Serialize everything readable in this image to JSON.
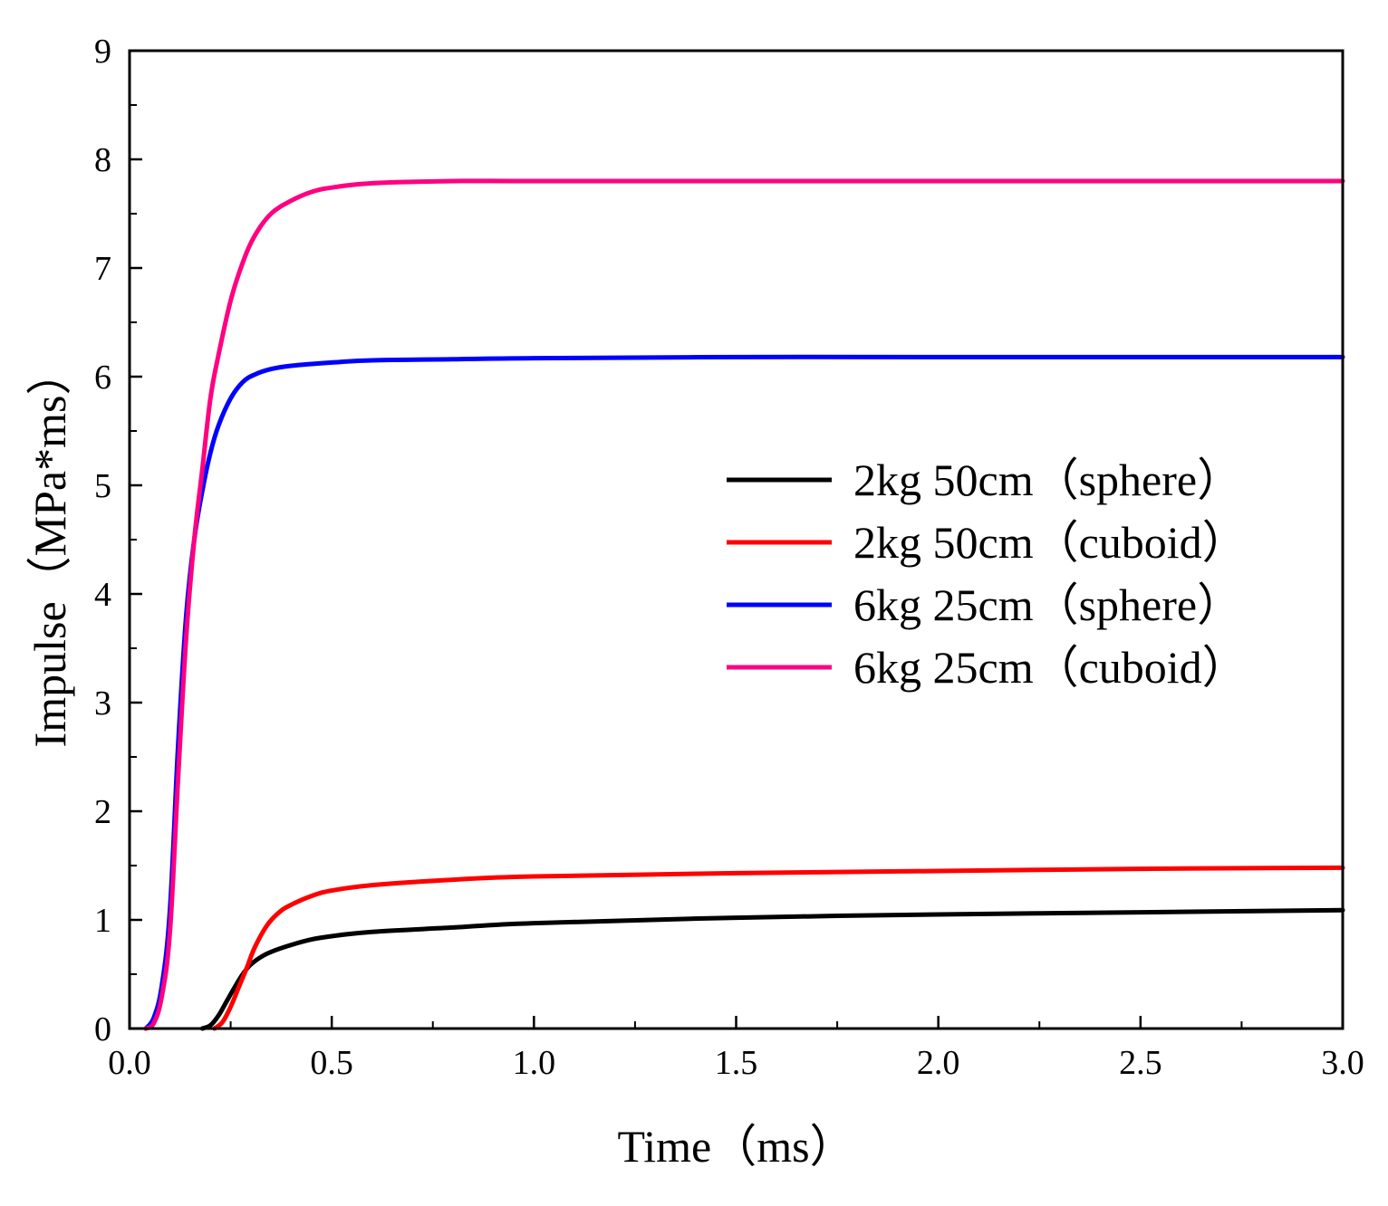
{
  "chart_data": {
    "type": "line",
    "title": "",
    "xlabel": "Time（ms）",
    "ylabel": "Impulse（MPa*ms）",
    "xlim": [
      0,
      3.0
    ],
    "ylim": [
      0,
      9
    ],
    "xticks": [
      "0.0",
      "0.5",
      "1.0",
      "1.5",
      "2.0",
      "2.5",
      "3.0"
    ],
    "xtick_values": [
      0,
      0.5,
      1.0,
      1.5,
      2.0,
      2.5,
      3.0
    ],
    "yticks": [
      "0",
      "1",
      "2",
      "3",
      "4",
      "5",
      "6",
      "7",
      "8",
      "9"
    ],
    "ytick_values": [
      0,
      1,
      2,
      3,
      4,
      5,
      6,
      7,
      8,
      9
    ],
    "grid": false,
    "legend_position": "center-right",
    "series": [
      {
        "name": "2kg 50cm（sphere）",
        "color": "#000000",
        "x": [
          0.18,
          0.2,
          0.22,
          0.24,
          0.26,
          0.28,
          0.3,
          0.33,
          0.36,
          0.4,
          0.45,
          0.5,
          0.6,
          0.8,
          1.0,
          1.5,
          2.0,
          2.5,
          3.0
        ],
        "y": [
          0,
          0.03,
          0.12,
          0.25,
          0.38,
          0.5,
          0.59,
          0.67,
          0.72,
          0.77,
          0.82,
          0.85,
          0.89,
          0.93,
          0.97,
          1.02,
          1.05,
          1.07,
          1.09
        ]
      },
      {
        "name": "2kg 50cm（cuboid）",
        "color": "#ff0000",
        "x": [
          0.21,
          0.23,
          0.25,
          0.27,
          0.29,
          0.31,
          0.34,
          0.37,
          0.4,
          0.45,
          0.5,
          0.6,
          0.8,
          1.0,
          1.5,
          2.0,
          2.5,
          3.0
        ],
        "y": [
          0,
          0.06,
          0.2,
          0.38,
          0.56,
          0.75,
          0.95,
          1.07,
          1.14,
          1.22,
          1.27,
          1.32,
          1.37,
          1.4,
          1.43,
          1.45,
          1.47,
          1.48
        ]
      },
      {
        "name": "6kg 25cm（sphere）",
        "color": "#0000ff",
        "x": [
          0.04,
          0.06,
          0.08,
          0.1,
          0.12,
          0.14,
          0.16,
          0.18,
          0.2,
          0.22,
          0.25,
          0.28,
          0.31,
          0.35,
          0.4,
          0.5,
          0.6,
          0.8,
          1.0,
          1.5,
          2.0,
          3.0
        ],
        "y": [
          0,
          0.1,
          0.4,
          1.1,
          2.6,
          3.8,
          4.5,
          4.95,
          5.3,
          5.55,
          5.8,
          5.95,
          6.02,
          6.07,
          6.1,
          6.13,
          6.15,
          6.16,
          6.17,
          6.18,
          6.18,
          6.18
        ]
      },
      {
        "name": "6kg 25cm（cuboid）",
        "color": "#ff0080",
        "x": [
          0.04,
          0.06,
          0.08,
          0.1,
          0.12,
          0.14,
          0.16,
          0.18,
          0.2,
          0.22,
          0.25,
          0.28,
          0.31,
          0.35,
          0.4,
          0.45,
          0.5,
          0.6,
          0.8,
          1.0,
          1.5,
          2.0,
          3.0
        ],
        "y": [
          0,
          0.05,
          0.3,
          0.9,
          2.3,
          3.6,
          4.5,
          5.15,
          5.8,
          6.2,
          6.7,
          7.05,
          7.3,
          7.5,
          7.62,
          7.7,
          7.74,
          7.78,
          7.8,
          7.8,
          7.8,
          7.8,
          7.8
        ]
      }
    ]
  }
}
